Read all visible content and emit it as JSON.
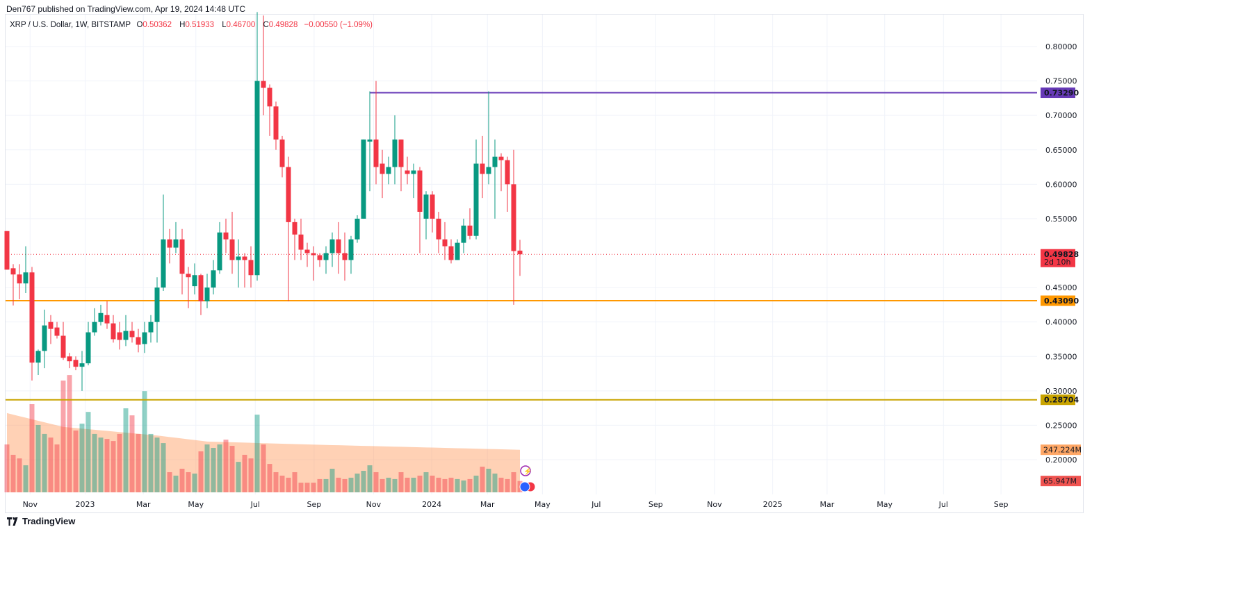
{
  "published": "Den767 published on TradingView.com, Apr 19, 2024 14:48 UTC",
  "legend": {
    "symbol": "XRP / U.S. Dollar, 1W, BITSTAMP",
    "o_label": "O",
    "o": "0.50362",
    "h_label": "H",
    "h": "0.51933",
    "l_label": "L",
    "l": "0.46700",
    "c_label": "C",
    "c": "0.49828",
    "change": "−0.00550 (−1.09%)"
  },
  "footer": {
    "brand": "TradingView"
  },
  "colors": {
    "up": "#089981",
    "down": "#f23645",
    "grid": "#f0f3fa",
    "purple": "#673ab7",
    "orange": "#ff9800",
    "gold": "#c9a400",
    "vol_ma": "#ff9a5a"
  },
  "chart_data": {
    "type": "candlestick",
    "title": "XRP / U.S. Dollar, 1W, BITSTAMP",
    "ylim": [
      0.16,
      0.845
    ],
    "y_ticks": [
      "0.80000",
      "0.75000",
      "0.70000",
      "0.65000",
      "0.60000",
      "0.55000",
      "0.45000",
      "0.40000",
      "0.35000",
      "0.30000",
      "0.25000",
      "0.20000"
    ],
    "x_ticks": [
      {
        "label": "Nov",
        "week": 3.7
      },
      {
        "label": "2023",
        "week": 12.5
      },
      {
        "label": "Mar",
        "week": 21.8
      },
      {
        "label": "May",
        "week": 30.2
      },
      {
        "label": "Jul",
        "week": 39.7
      },
      {
        "label": "Sep",
        "week": 49.1
      },
      {
        "label": "Nov",
        "week": 58.6
      },
      {
        "label": "2024",
        "week": 67.9
      },
      {
        "label": "Mar",
        "week": 76.8
      },
      {
        "label": "May",
        "week": 85.6
      },
      {
        "label": "Jul",
        "week": 94.2
      },
      {
        "label": "Sep",
        "week": 103.7
      },
      {
        "label": "Nov",
        "week": 113.1
      },
      {
        "label": "2025",
        "week": 122.4
      },
      {
        "label": "Mar",
        "week": 131.1
      },
      {
        "label": "May",
        "week": 140.3
      },
      {
        "label": "Jul",
        "week": 149.7
      },
      {
        "label": "Sep",
        "week": 158.9
      }
    ],
    "candles_ohlc": [
      [
        0.532,
        0.532,
        0.476,
        0.476
      ],
      [
        0.478,
        0.484,
        0.424,
        0.469
      ],
      [
        0.469,
        0.484,
        0.433,
        0.456
      ],
      [
        0.456,
        0.51,
        0.442,
        0.472
      ],
      [
        0.472,
        0.48,
        0.315,
        0.341
      ],
      [
        0.341,
        0.36,
        0.323,
        0.358
      ],
      [
        0.358,
        0.418,
        0.333,
        0.395
      ],
      [
        0.4,
        0.41,
        0.368,
        0.39
      ],
      [
        0.392,
        0.4,
        0.376,
        0.38
      ],
      [
        0.38,
        0.4,
        0.345,
        0.348
      ],
      [
        0.35,
        0.355,
        0.333,
        0.343
      ],
      [
        0.345,
        0.35,
        0.33,
        0.335
      ],
      [
        0.335,
        0.358,
        0.3,
        0.34
      ],
      [
        0.34,
        0.4,
        0.337,
        0.385
      ],
      [
        0.385,
        0.42,
        0.38,
        0.4
      ],
      [
        0.4,
        0.425,
        0.395,
        0.413
      ],
      [
        0.41,
        0.43,
        0.39,
        0.398
      ],
      [
        0.398,
        0.41,
        0.37,
        0.375
      ],
      [
        0.385,
        0.4,
        0.36,
        0.374
      ],
      [
        0.374,
        0.41,
        0.365,
        0.387
      ],
      [
        0.387,
        0.4,
        0.37,
        0.378
      ],
      [
        0.378,
        0.39,
        0.356,
        0.367
      ],
      [
        0.368,
        0.4,
        0.355,
        0.385
      ],
      [
        0.385,
        0.41,
        0.37,
        0.4
      ],
      [
        0.4,
        0.465,
        0.37,
        0.45
      ],
      [
        0.45,
        0.585,
        0.445,
        0.52
      ],
      [
        0.52,
        0.535,
        0.485,
        0.508
      ],
      [
        0.508,
        0.545,
        0.5,
        0.52
      ],
      [
        0.52,
        0.535,
        0.44,
        0.47
      ],
      [
        0.47,
        0.48,
        0.42,
        0.465
      ],
      [
        0.452,
        0.485,
        0.44,
        0.468
      ],
      [
        0.468,
        0.47,
        0.41,
        0.43
      ],
      [
        0.43,
        0.47,
        0.42,
        0.45
      ],
      [
        0.45,
        0.49,
        0.44,
        0.475
      ],
      [
        0.475,
        0.545,
        0.47,
        0.53
      ],
      [
        0.53,
        0.55,
        0.5,
        0.52
      ],
      [
        0.52,
        0.56,
        0.47,
        0.49
      ],
      [
        0.49,
        0.52,
        0.45,
        0.495
      ],
      [
        0.495,
        0.5,
        0.45,
        0.49
      ],
      [
        0.49,
        0.51,
        0.45,
        0.468
      ],
      [
        0.468,
        0.85,
        0.46,
        0.75
      ],
      [
        0.75,
        0.845,
        0.7,
        0.74
      ],
      [
        0.74,
        0.745,
        0.67,
        0.713
      ],
      [
        0.713,
        0.72,
        0.65,
        0.665
      ],
      [
        0.665,
        0.67,
        0.61,
        0.625
      ],
      [
        0.625,
        0.64,
        0.43,
        0.545
      ],
      [
        0.545,
        0.55,
        0.49,
        0.527
      ],
      [
        0.527,
        0.55,
        0.49,
        0.505
      ],
      [
        0.505,
        0.515,
        0.48,
        0.5
      ],
      [
        0.5,
        0.51,
        0.46,
        0.497
      ],
      [
        0.497,
        0.5,
        0.48,
        0.49
      ],
      [
        0.49,
        0.51,
        0.47,
        0.5
      ],
      [
        0.5,
        0.53,
        0.48,
        0.52
      ],
      [
        0.52,
        0.545,
        0.47,
        0.5
      ],
      [
        0.5,
        0.53,
        0.46,
        0.49
      ],
      [
        0.49,
        0.525,
        0.47,
        0.52
      ],
      [
        0.52,
        0.555,
        0.515,
        0.55
      ],
      [
        0.55,
        0.665,
        0.55,
        0.665
      ],
      [
        0.662,
        0.735,
        0.59,
        0.665
      ],
      [
        0.665,
        0.75,
        0.6,
        0.625
      ],
      [
        0.63,
        0.65,
        0.58,
        0.615
      ],
      [
        0.615,
        0.64,
        0.6,
        0.625
      ],
      [
        0.625,
        0.7,
        0.6,
        0.665
      ],
      [
        0.665,
        0.665,
        0.59,
        0.625
      ],
      [
        0.62,
        0.64,
        0.6,
        0.615
      ],
      [
        0.615,
        0.63,
        0.58,
        0.62
      ],
      [
        0.62,
        0.625,
        0.5,
        0.56
      ],
      [
        0.55,
        0.59,
        0.52,
        0.585
      ],
      [
        0.585,
        0.59,
        0.53,
        0.55
      ],
      [
        0.55,
        0.56,
        0.5,
        0.52
      ],
      [
        0.52,
        0.545,
        0.49,
        0.51
      ],
      [
        0.51,
        0.52,
        0.485,
        0.49
      ],
      [
        0.49,
        0.52,
        0.49,
        0.515
      ],
      [
        0.515,
        0.55,
        0.5,
        0.54
      ],
      [
        0.54,
        0.565,
        0.52,
        0.525
      ],
      [
        0.525,
        0.665,
        0.52,
        0.63
      ],
      [
        0.63,
        0.67,
        0.58,
        0.615
      ],
      [
        0.615,
        0.735,
        0.6,
        0.625
      ],
      [
        0.625,
        0.665,
        0.55,
        0.64
      ],
      [
        0.64,
        0.645,
        0.59,
        0.635
      ],
      [
        0.635,
        0.64,
        0.56,
        0.6
      ],
      [
        0.6,
        0.65,
        0.425,
        0.503
      ],
      [
        0.50362,
        0.51933,
        0.467,
        0.49828
      ]
    ],
    "volume_millions": [
      278,
      218,
      197,
      157,
      512,
      391,
      339,
      318,
      278,
      649,
      681,
      359,
      399,
      467,
      339,
      318,
      310,
      298,
      339,
      488,
      447,
      339,
      588,
      339,
      318,
      286,
      117,
      97,
      137,
      117,
      109,
      238,
      278,
      258,
      278,
      306,
      270,
      177,
      218,
      197,
      451,
      278,
      165,
      117,
      97,
      85,
      117,
      56,
      56,
      56,
      77,
      77,
      137,
      85,
      77,
      85,
      109,
      125,
      157,
      117,
      77,
      85,
      77,
      117,
      85,
      85,
      97,
      117,
      97,
      85,
      77,
      85,
      77,
      69,
      77,
      97,
      149,
      137,
      109,
      85,
      77,
      117,
      65.947
    ],
    "volume_ma_points": [
      [
        0,
        460
      ],
      [
        9,
        380
      ],
      [
        24,
        330
      ],
      [
        32,
        295
      ],
      [
        48,
        278
      ],
      [
        82,
        247.224
      ]
    ],
    "hlines": [
      {
        "name": "resistance",
        "value": 0.7329,
        "label": "0.73290",
        "color": "#673ab7",
        "from_week": 58
      },
      {
        "name": "last-price",
        "value": 0.49828,
        "label": "0.49828",
        "sublabel": "2d 10h",
        "color": "#f23645",
        "dotted": true
      },
      {
        "name": "support",
        "value": 0.4309,
        "label": "0.43090",
        "color": "#ff9800"
      },
      {
        "name": "support-2",
        "value": 0.28704,
        "label": "0.28704",
        "color": "#c9a400"
      }
    ],
    "volume_labels": [
      {
        "name": "volume-ma",
        "label": "247.224M",
        "value": 247.224,
        "bg": "#ffa766",
        "fg": "#131722"
      },
      {
        "name": "volume-last",
        "label": "65.947M",
        "value": 65.947,
        "bg": "#ef5350",
        "fg": "#ffffff"
      }
    ]
  }
}
